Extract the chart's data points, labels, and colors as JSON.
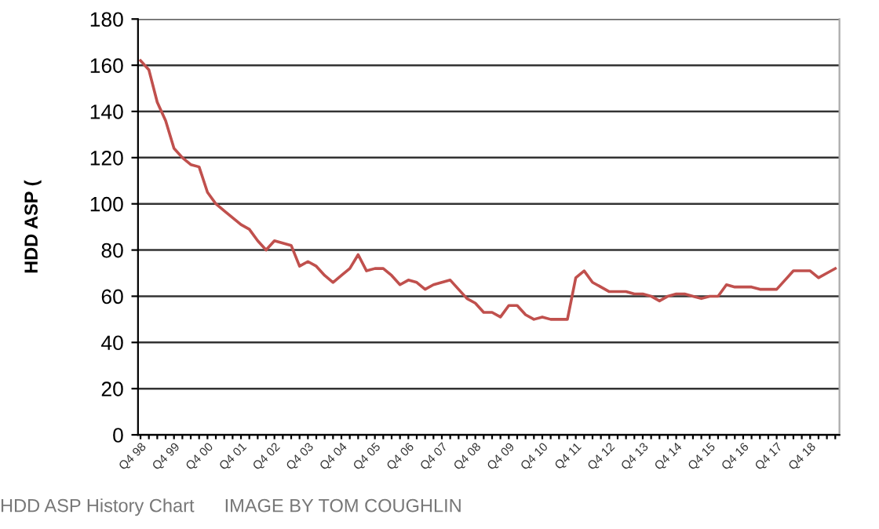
{
  "chart_data": {
    "type": "line",
    "ylabel": "HDD ASP (",
    "categories": [
      "Q4 98",
      null,
      null,
      null,
      "Q4 99",
      null,
      null,
      null,
      "Q4 00",
      null,
      null,
      null,
      "Q4 01",
      null,
      null,
      null,
      "Q4 02",
      null,
      null,
      null,
      "Q4 03",
      null,
      null,
      null,
      "Q4 04",
      null,
      null,
      null,
      "Q4 05",
      null,
      null,
      null,
      "Q4 06",
      null,
      null,
      null,
      "Q4 07",
      null,
      null,
      null,
      "Q4 08",
      null,
      null,
      null,
      "Q4 09",
      null,
      null,
      null,
      "Q4 10",
      null,
      null,
      null,
      "Q4 11",
      null,
      null,
      null,
      "Q4 12",
      null,
      null,
      null,
      "Q4 13",
      null,
      null,
      null,
      "Q4 14",
      null,
      null,
      null,
      "Q4 15",
      null,
      null,
      null,
      "Q4 16",
      null,
      null,
      null,
      "Q4 17",
      null,
      null,
      null,
      "Q4 18",
      null,
      null,
      null
    ],
    "series": [
      {
        "color": "#c0504d",
        "values": [
          162,
          158,
          144,
          136,
          124,
          120,
          117,
          116,
          105,
          100,
          97,
          94,
          91,
          89,
          84,
          80,
          84,
          83,
          82,
          73,
          75,
          73,
          69,
          66,
          69,
          72,
          78,
          71,
          72,
          72,
          69,
          65,
          67,
          66,
          63,
          65,
          66,
          67,
          63,
          59,
          57,
          53,
          53,
          51,
          56,
          56,
          52,
          50,
          51,
          50,
          50,
          50,
          68,
          71,
          66,
          64,
          62,
          62,
          62,
          61,
          61,
          60,
          58,
          60,
          61,
          61,
          60,
          59,
          60,
          60,
          65,
          64,
          64,
          64,
          63,
          63,
          63,
          67,
          71,
          71,
          71,
          68,
          70,
          72
        ]
      }
    ],
    "ylim": [
      0,
      180
    ],
    "yticks": [
      0,
      20,
      40,
      60,
      80,
      100,
      120,
      140,
      160,
      180
    ],
    "grid": "y",
    "marker": "none",
    "line_style": "solid",
    "annotations": [
      "HDD ASP History Chart",
      "IMAGE BY TOM COUGHLIN"
    ]
  }
}
